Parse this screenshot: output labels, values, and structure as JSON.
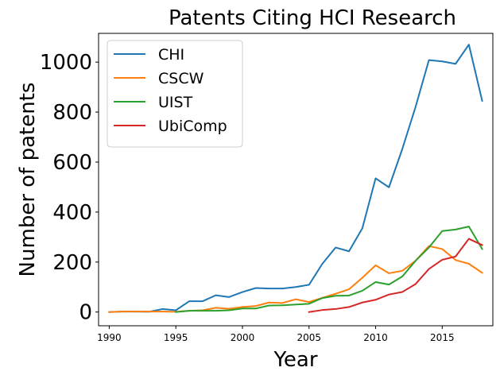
{
  "chart_data": {
    "type": "line",
    "title": "Patents Citing HCI Research",
    "xlabel": "Year",
    "ylabel": "Number of patents",
    "xlim": [
      1989.2,
      2018.8
    ],
    "ylim": [
      -55,
      1115
    ],
    "xticks": [
      "1990",
      "1995",
      "2000",
      "2005",
      "2010",
      "2015"
    ],
    "yticks": [
      "0",
      "200",
      "400",
      "600",
      "800",
      "1000"
    ],
    "grid": false,
    "legend_position": "top-left",
    "series": [
      {
        "name": "CHI",
        "color": "#1f77b4",
        "x": [
          1990,
          1991,
          1992,
          1993,
          1994,
          1995,
          1996,
          1997,
          1998,
          1999,
          2000,
          2001,
          2002,
          2003,
          2004,
          2005,
          2006,
          2007,
          2008,
          2009,
          2010,
          2011,
          2012,
          2013,
          2014,
          2015,
          2016,
          2017,
          2018
        ],
        "y": [
          0,
          2,
          2,
          1,
          12,
          7,
          43,
          43,
          67,
          60,
          80,
          96,
          94,
          94,
          100,
          109,
          193,
          258,
          243,
          335,
          535,
          499,
          652,
          821,
          1008,
          1003,
          993,
          1070,
          845
        ]
      },
      {
        "name": "CSCW",
        "color": "#ff7f0e",
        "x": [
          1990,
          1991,
          1992,
          1993,
          1994,
          1995,
          1996,
          1997,
          1998,
          1999,
          2000,
          2001,
          2002,
          2003,
          2004,
          2005,
          2006,
          2007,
          2008,
          2009,
          2010,
          2011,
          2012,
          2013,
          2014,
          2015,
          2016,
          2017,
          2018
        ],
        "y": [
          0,
          2,
          2,
          2,
          2,
          1,
          5,
          7,
          17,
          13,
          20,
          24,
          38,
          36,
          51,
          40,
          57,
          73,
          91,
          137,
          187,
          155,
          165,
          205,
          264,
          252,
          208,
          193,
          157
        ]
      },
      {
        "name": "UIST",
        "color": "#2ca02c",
        "x": [
          1995,
          1996,
          1997,
          1998,
          1999,
          2000,
          2001,
          2002,
          2003,
          2004,
          2005,
          2006,
          2007,
          2008,
          2009,
          2010,
          2011,
          2012,
          2013,
          2014,
          2015,
          2016,
          2017,
          2018
        ],
        "y": [
          0,
          5,
          5,
          5,
          7,
          14,
          14,
          26,
          27,
          30,
          33,
          56,
          65,
          66,
          85,
          120,
          110,
          142,
          205,
          258,
          324,
          330,
          342,
          252
        ]
      },
      {
        "name": "UbiComp",
        "color": "#d62728",
        "x": [
          2005,
          2006,
          2007,
          2008,
          2009,
          2010,
          2011,
          2012,
          2013,
          2014,
          2015,
          2016,
          2017,
          2018
        ],
        "y": [
          0,
          8,
          12,
          20,
          38,
          49,
          70,
          80,
          112,
          172,
          209,
          222,
          293,
          268
        ]
      }
    ]
  }
}
